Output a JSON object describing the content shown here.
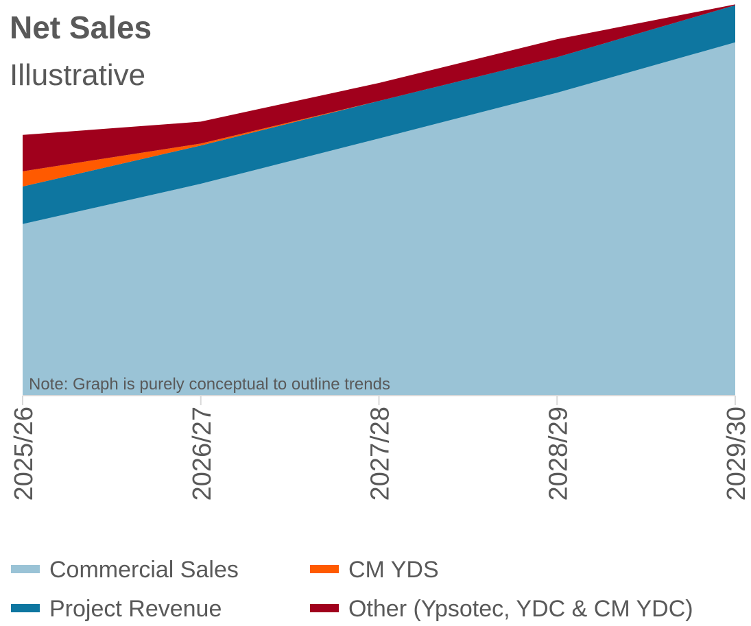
{
  "chart_data": {
    "type": "stacked_area",
    "title": "Net Sales",
    "subtitle": "Illustrative",
    "annotation": "Note: Graph is purely conceptual to outline trends",
    "categories": [
      "2025/26",
      "2026/27",
      "2027/28",
      "2028/29",
      "2029/30"
    ],
    "series": [
      {
        "name": "Commercial Sales",
        "color": "#9ac3d6",
        "values": [
          43.9,
          54.2,
          65.8,
          77.5,
          90.4
        ]
      },
      {
        "name": "Project Revenue",
        "color": "#0e76a0",
        "values": [
          9.6,
          9.8,
          9.6,
          9.1,
          9.5
        ]
      },
      {
        "name": "CM YDS",
        "color": "#ff5a00",
        "values": [
          3.9,
          0.5,
          0,
          0,
          0
        ]
      },
      {
        "name": "Other (Ypsotec, YDC & CM YDC)",
        "color": "#a0001c",
        "values": [
          9.3,
          5.6,
          4.6,
          4.6,
          0.2
        ]
      }
    ],
    "ylim": [
      0,
      100
    ]
  }
}
